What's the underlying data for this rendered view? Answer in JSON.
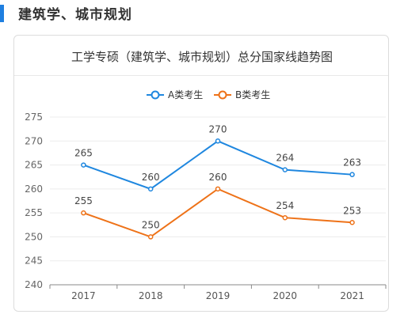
{
  "section": {
    "title": "建筑学、城市规划"
  },
  "chart_data": {
    "type": "line",
    "title": "工学专硕（建筑学、城市规划）总分国家线趋势图",
    "categories": [
      "2017",
      "2018",
      "2019",
      "2020",
      "2021"
    ],
    "series": [
      {
        "name": "A类考生",
        "values": [
          265,
          260,
          270,
          264,
          263
        ],
        "color": "#1f87df"
      },
      {
        "name": "B类考生",
        "values": [
          255,
          250,
          260,
          254,
          253
        ],
        "color": "#ee7218"
      }
    ],
    "yticks": [
      240,
      245,
      250,
      255,
      260,
      265,
      270,
      275
    ],
    "ylim": [
      240,
      275
    ],
    "legend_position": "top-center",
    "grid": true
  }
}
